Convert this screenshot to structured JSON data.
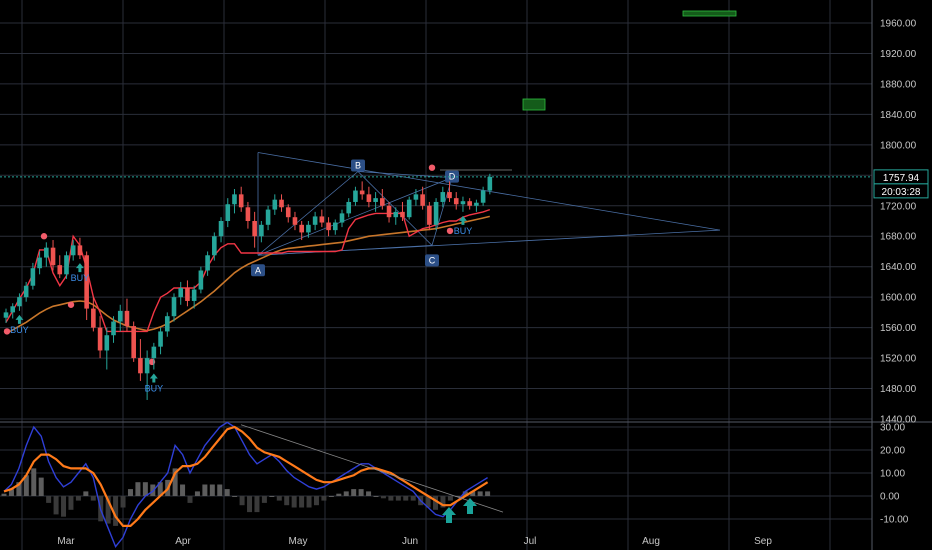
{
  "chart_data": {
    "type": "candlestick",
    "main_panel": {
      "ylim": [
        1440,
        1980
      ],
      "y_ticks": [
        "1440.00",
        "1480.00",
        "1520.00",
        "1560.00",
        "1600.00",
        "1640.00",
        "1680.00",
        "1720.00",
        "1760.00",
        "1800.00",
        "1840.00",
        "1880.00",
        "1920.00",
        "1960.00"
      ],
      "last_price": "1757.94",
      "countdown": "20:03:28",
      "candles": [
        [
          1573,
          1585,
          1566,
          1580
        ],
        [
          1580,
          1592,
          1572,
          1588
        ],
        [
          1588,
          1605,
          1582,
          1600
        ],
        [
          1600,
          1620,
          1594,
          1615
        ],
        [
          1615,
          1645,
          1610,
          1638
        ],
        [
          1638,
          1660,
          1630,
          1652
        ],
        [
          1652,
          1672,
          1640,
          1665
        ],
        [
          1665,
          1675,
          1635,
          1642
        ],
        [
          1642,
          1655,
          1625,
          1630
        ],
        [
          1630,
          1660,
          1624,
          1655
        ],
        [
          1655,
          1675,
          1648,
          1668
        ],
        [
          1668,
          1678,
          1650,
          1655
        ],
        [
          1655,
          1660,
          1570,
          1585
        ],
        [
          1585,
          1600,
          1555,
          1560
        ],
        [
          1560,
          1575,
          1520,
          1530
        ],
        [
          1530,
          1560,
          1505,
          1550
        ],
        [
          1550,
          1575,
          1540,
          1568
        ],
        [
          1568,
          1590,
          1555,
          1582
        ],
        [
          1582,
          1598,
          1555,
          1562
        ],
        [
          1562,
          1568,
          1515,
          1520
        ],
        [
          1520,
          1545,
          1490,
          1500
        ],
        [
          1500,
          1530,
          1465,
          1520
        ],
        [
          1520,
          1540,
          1505,
          1535
        ],
        [
          1535,
          1560,
          1525,
          1555
        ],
        [
          1555,
          1580,
          1548,
          1575
        ],
        [
          1575,
          1605,
          1568,
          1600
        ],
        [
          1600,
          1620,
          1590,
          1612
        ],
        [
          1612,
          1622,
          1588,
          1595
        ],
        [
          1595,
          1615,
          1585,
          1610
        ],
        [
          1610,
          1640,
          1605,
          1635
        ],
        [
          1635,
          1660,
          1628,
          1655
        ],
        [
          1655,
          1685,
          1648,
          1680
        ],
        [
          1680,
          1705,
          1672,
          1700
        ],
        [
          1700,
          1730,
          1692,
          1722
        ],
        [
          1722,
          1742,
          1710,
          1735
        ],
        [
          1735,
          1745,
          1712,
          1718
        ],
        [
          1718,
          1725,
          1690,
          1700
        ],
        [
          1700,
          1712,
          1665,
          1680
        ],
        [
          1680,
          1700,
          1672,
          1695
        ],
        [
          1695,
          1720,
          1688,
          1715
        ],
        [
          1715,
          1735,
          1708,
          1728
        ],
        [
          1728,
          1735,
          1712,
          1718
        ],
        [
          1718,
          1722,
          1698,
          1705
        ],
        [
          1705,
          1712,
          1688,
          1695
        ],
        [
          1695,
          1700,
          1675,
          1685
        ],
        [
          1685,
          1700,
          1678,
          1695
        ],
        [
          1695,
          1712,
          1688,
          1706
        ],
        [
          1706,
          1715,
          1692,
          1698
        ],
        [
          1698,
          1705,
          1680,
          1688
        ],
        [
          1688,
          1702,
          1682,
          1698
        ],
        [
          1698,
          1715,
          1692,
          1710
        ],
        [
          1710,
          1730,
          1705,
          1725
        ],
        [
          1725,
          1745,
          1720,
          1740
        ],
        [
          1740,
          1752,
          1728,
          1735
        ],
        [
          1735,
          1745,
          1718,
          1725
        ],
        [
          1725,
          1738,
          1712,
          1730
        ],
        [
          1730,
          1742,
          1715,
          1720
        ],
        [
          1720,
          1725,
          1698,
          1705
        ],
        [
          1705,
          1718,
          1695,
          1712
        ],
        [
          1712,
          1725,
          1700,
          1705
        ],
        [
          1705,
          1732,
          1702,
          1728
        ],
        [
          1728,
          1742,
          1720,
          1735
        ],
        [
          1735,
          1745,
          1715,
          1720
        ],
        [
          1720,
          1725,
          1688,
          1695
        ],
        [
          1695,
          1730,
          1688,
          1725
        ],
        [
          1725,
          1745,
          1718,
          1738
        ],
        [
          1738,
          1752,
          1725,
          1730
        ],
        [
          1730,
          1738,
          1715,
          1722
        ],
        [
          1722,
          1732,
          1712,
          1726
        ],
        [
          1726,
          1730,
          1715,
          1720
        ],
        [
          1720,
          1728,
          1712,
          1724
        ],
        [
          1724,
          1745,
          1720,
          1740
        ],
        [
          1740,
          1762,
          1735,
          1758
        ]
      ],
      "ema_line": [
        1552,
        1557,
        1562,
        1567,
        1573,
        1579,
        1584,
        1588,
        1590,
        1592,
        1594,
        1595,
        1594,
        1590,
        1583,
        1576,
        1570,
        1566,
        1562,
        1560,
        1558,
        1556,
        1558,
        1561,
        1565,
        1570,
        1576,
        1582,
        1588,
        1594,
        1601,
        1608,
        1616,
        1624,
        1632,
        1638,
        1643,
        1647,
        1651,
        1655,
        1659,
        1662,
        1664,
        1665,
        1666,
        1667,
        1668,
        1669,
        1670,
        1671,
        1672,
        1674,
        1676,
        1678,
        1680,
        1681,
        1682,
        1683,
        1684,
        1685,
        1686,
        1687,
        1688,
        1689,
        1690,
        1692,
        1694,
        1696,
        1698,
        1700,
        1702,
        1704,
        1706
      ],
      "stop_line": [
        1567,
        1582,
        1598,
        1612,
        1630,
        1662,
        1662,
        1632,
        1615,
        1628,
        1680,
        1668,
        1638,
        1600,
        1580,
        1555,
        1555,
        1555,
        1555,
        1555,
        1555,
        1555,
        1580,
        1600,
        1605,
        1612,
        1612,
        1612,
        1612,
        1620,
        1640,
        1655,
        1665,
        1670,
        1670,
        1658,
        1658,
        1658,
        1658,
        1658,
        1658,
        1658,
        1660,
        1660,
        1660,
        1660,
        1660,
        1660,
        1660,
        1660,
        1662,
        1690,
        1702,
        1705,
        1708,
        1710,
        1710,
        1710,
        1710,
        1710,
        1680,
        1685,
        1690,
        1692,
        1695,
        1698,
        1700,
        1700,
        1705,
        1708,
        1710,
        1712,
        1715
      ],
      "signals": [
        {
          "text": "BUY",
          "index": 2
        },
        {
          "text": "BUY",
          "index": 11
        },
        {
          "text": "BUY",
          "index": 22
        },
        {
          "text": "BUY",
          "index": 68
        }
      ],
      "pattern_points": [
        "A",
        "B",
        "C",
        "D"
      ],
      "x_ticks": [
        "Mar",
        "Apr",
        "May",
        "Jun",
        "Jul",
        "Aug",
        "Sep"
      ]
    },
    "oscillator_panel": {
      "ylim": [
        -15,
        32
      ],
      "y_ticks": [
        "30.00",
        "20.00",
        "10.00",
        "0.00",
        "-10.00"
      ],
      "fast_line": [
        2,
        5,
        12,
        22,
        30,
        26,
        15,
        8,
        4,
        6,
        10,
        14,
        8,
        -6,
        -14,
        -22,
        -18,
        -10,
        -4,
        0,
        2,
        6,
        10,
        22,
        18,
        10,
        16,
        22,
        26,
        30,
        32,
        30,
        24,
        18,
        14,
        16,
        18,
        15,
        11,
        8,
        6,
        4,
        3,
        4,
        6,
        8,
        10,
        12,
        14,
        14,
        12,
        10,
        8,
        6,
        4,
        2,
        -2,
        -5,
        -8,
        -9,
        -6,
        -2,
        2,
        4,
        6,
        8
      ],
      "slow_line": [
        2,
        3,
        5,
        9,
        15,
        18,
        18,
        16,
        13,
        12,
        12,
        12,
        10,
        5,
        -2,
        -9,
        -13,
        -13,
        -10,
        -6,
        -3,
        0,
        3,
        10,
        13,
        13,
        14,
        17,
        21,
        25,
        29,
        30,
        28,
        25,
        21,
        19,
        18,
        17,
        15,
        13,
        11,
        9,
        7,
        6,
        6,
        7,
        8,
        9,
        11,
        12,
        12,
        11,
        10,
        8,
        6,
        4,
        2,
        0,
        -2,
        -4,
        -4,
        -2,
        0,
        2,
        4,
        6
      ],
      "histogram": [
        1,
        3,
        6,
        9,
        12,
        8,
        -3,
        -8,
        -9,
        -6,
        -2,
        2,
        -2,
        -11,
        -12,
        -13,
        -5,
        3,
        6,
        6,
        5,
        6,
        7,
        12,
        5,
        -3,
        2,
        5,
        5,
        5,
        3,
        0,
        -4,
        -7,
        -7,
        -3,
        0,
        -2,
        -4,
        -5,
        -5,
        -5,
        -4,
        -2,
        0,
        1,
        2,
        3,
        3,
        2,
        0,
        -1,
        -2,
        -2,
        -2,
        -2,
        -4,
        -5,
        -6,
        -5,
        -2,
        0,
        2,
        2,
        2,
        2
      ]
    }
  }
}
